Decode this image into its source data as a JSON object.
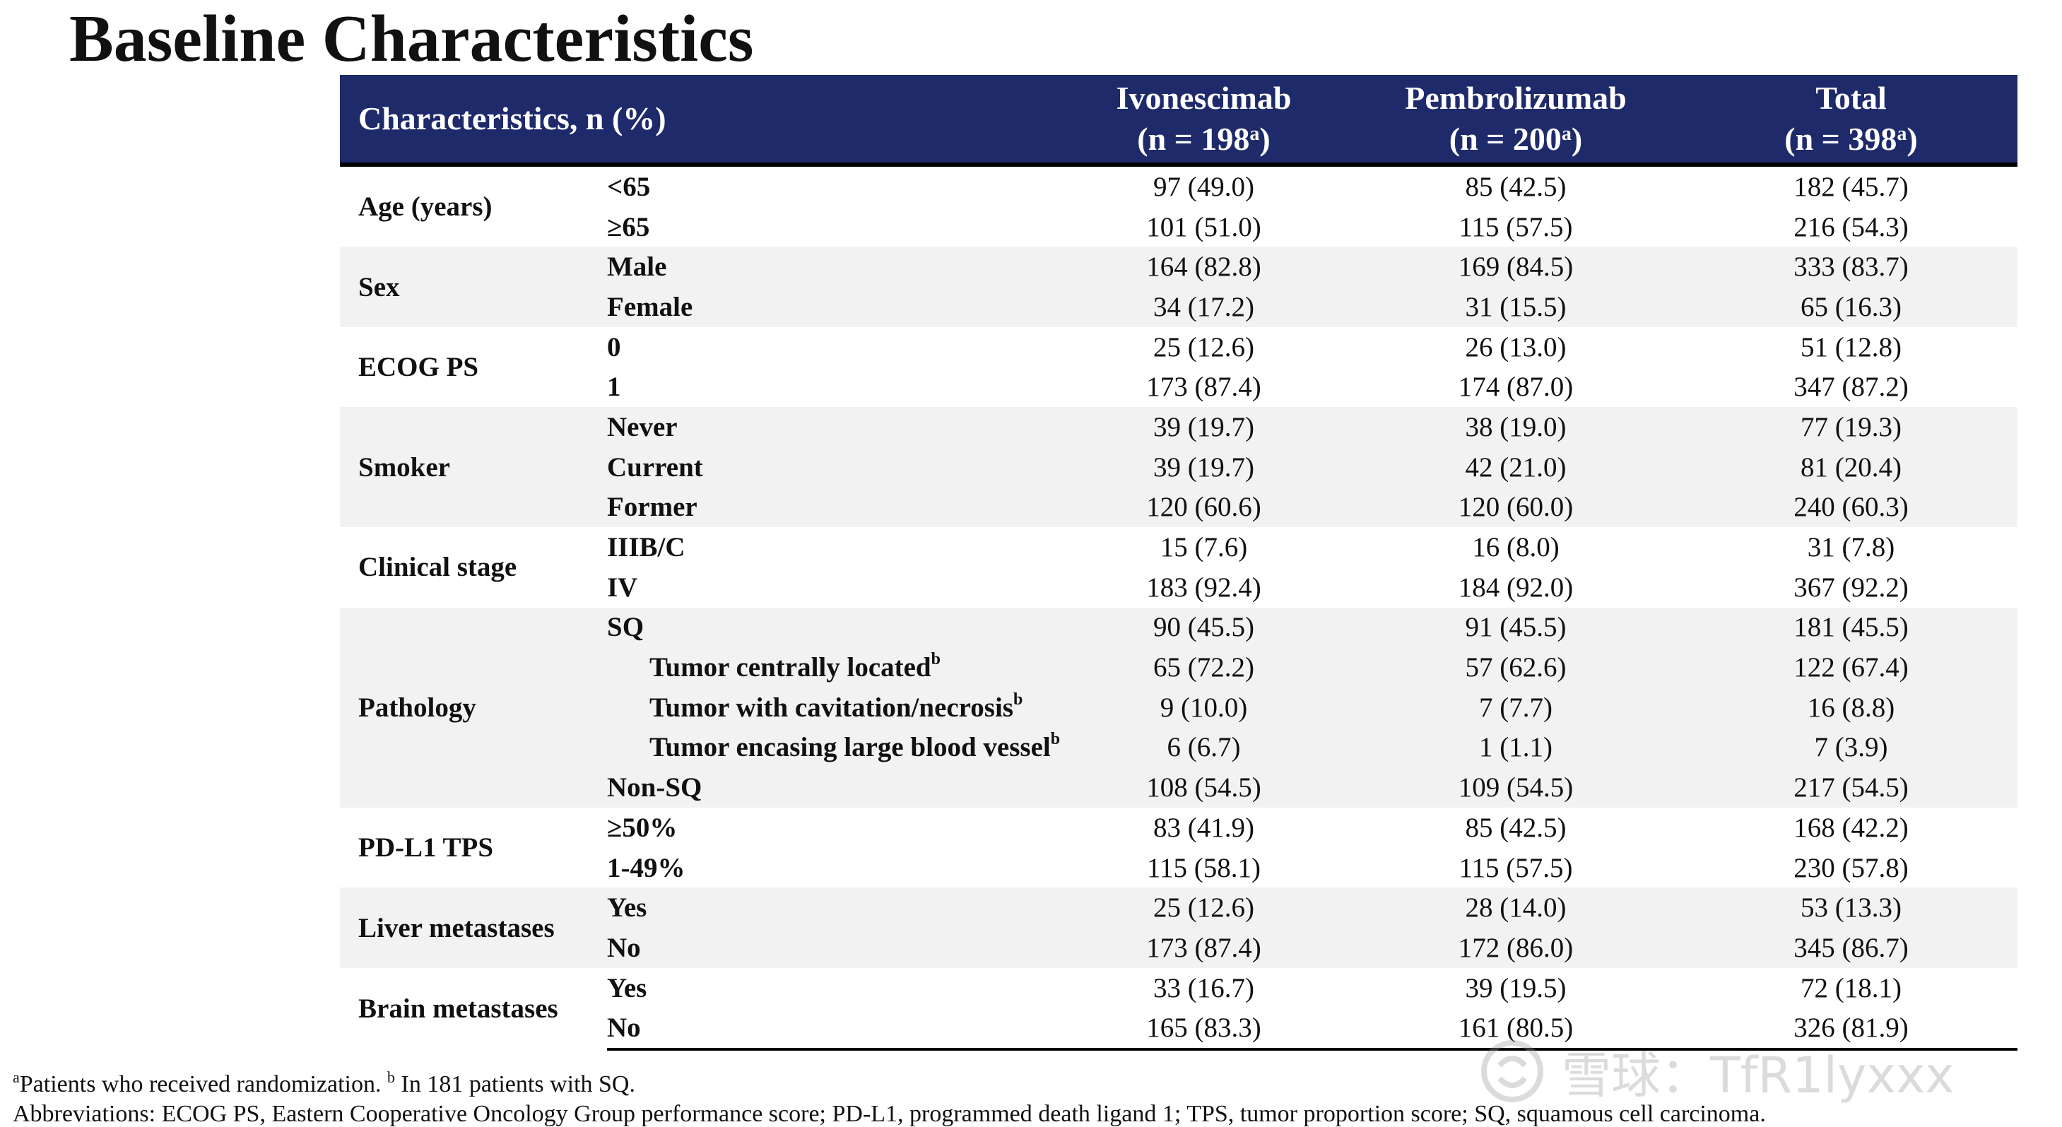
{
  "title": "Baseline Characteristics",
  "colors": {
    "header_bg": "#1f2a6b",
    "band_bg": "#f2f2f2"
  },
  "header": {
    "characteristics": "Characteristics, n (%)",
    "cols": [
      {
        "name": "Ivonescimab",
        "n_pre": "(n = 198",
        "sup": "a",
        "n_post": ")"
      },
      {
        "name": "Pembrolizumab",
        "n_pre": "(n = 200",
        "sup": "a",
        "n_post": ")"
      },
      {
        "name": "Total",
        "n_pre": "(n = 398",
        "sup": "a",
        "n_post": ")"
      }
    ]
  },
  "groups": [
    {
      "label": "Age (years)",
      "rows": [
        {
          "sub": "<65",
          "ivo": "97 (49.0)",
          "pem": "85 (42.5)",
          "tot": "182 (45.7)"
        },
        {
          "sub": "≥65",
          "ivo": "101 (51.0)",
          "pem": "115 (57.5)",
          "tot": "216 (54.3)"
        }
      ]
    },
    {
      "label": "Sex",
      "rows": [
        {
          "sub": "Male",
          "ivo": "164 (82.8)",
          "pem": "169 (84.5)",
          "tot": "333 (83.7)"
        },
        {
          "sub": "Female",
          "ivo": "34 (17.2)",
          "pem": "31 (15.5)",
          "tot": "65 (16.3)"
        }
      ]
    },
    {
      "label": "ECOG PS",
      "rows": [
        {
          "sub": "0",
          "ivo": "25 (12.6)",
          "pem": "26 (13.0)",
          "tot": "51 (12.8)"
        },
        {
          "sub": "1",
          "ivo": "173 (87.4)",
          "pem": "174 (87.0)",
          "tot": "347 (87.2)"
        }
      ]
    },
    {
      "label": "Smoker",
      "rows": [
        {
          "sub": "Never",
          "ivo": "39 (19.7)",
          "pem": "38 (19.0)",
          "tot": "77 (19.3)"
        },
        {
          "sub": "Current",
          "ivo": "39 (19.7)",
          "pem": "42 (21.0)",
          "tot": "81 (20.4)"
        },
        {
          "sub": "Former",
          "ivo": "120 (60.6)",
          "pem": "120 (60.0)",
          "tot": "240 (60.3)"
        }
      ]
    },
    {
      "label": "Clinical stage",
      "rows": [
        {
          "sub": "IIIB/C",
          "ivo": "15 (7.6)",
          "pem": "16 (8.0)",
          "tot": "31 (7.8)"
        },
        {
          "sub": "IV",
          "ivo": "183 (92.4)",
          "pem": "184 (92.0)",
          "tot": "367 (92.2)"
        }
      ]
    },
    {
      "label": "Pathology",
      "rows": [
        {
          "sub": "SQ",
          "ivo": "90 (45.5)",
          "pem": "91 (45.5)",
          "tot": "181 (45.5)"
        },
        {
          "sub": "Tumor centrally located",
          "sup": "b",
          "indent": true,
          "ivo": "65 (72.2)",
          "pem": "57 (62.6)",
          "tot": "122 (67.4)"
        },
        {
          "sub": "Tumor with cavitation/necrosis",
          "sup": "b",
          "indent": true,
          "ivo": "9 (10.0)",
          "pem": "7 (7.7)",
          "tot": "16 (8.8)"
        },
        {
          "sub": "Tumor encasing large blood vessel",
          "sup": "b",
          "indent": true,
          "ivo": "6 (6.7)",
          "pem": "1 (1.1)",
          "tot": "7 (3.9)"
        },
        {
          "sub": "Non-SQ",
          "ivo": "108 (54.5)",
          "pem": "109 (54.5)",
          "tot": "217 (54.5)"
        }
      ]
    },
    {
      "label": "PD-L1 TPS",
      "rows": [
        {
          "sub": "≥50%",
          "ivo": "83 (41.9)",
          "pem": "85 (42.5)",
          "tot": "168 (42.2)"
        },
        {
          "sub": "1-49%",
          "ivo": "115 (58.1)",
          "pem": "115 (57.5)",
          "tot": "230 (57.8)"
        }
      ]
    },
    {
      "label": "Liver metastases",
      "rows": [
        {
          "sub": "Yes",
          "ivo": "25 (12.6)",
          "pem": "28 (14.0)",
          "tot": "53 (13.3)"
        },
        {
          "sub": "No",
          "ivo": "173 (87.4)",
          "pem": "172 (86.0)",
          "tot": "345 (86.7)"
        }
      ]
    },
    {
      "label": "Brain metastases",
      "rows": [
        {
          "sub": "Yes",
          "ivo": "33 (16.7)",
          "pem": "39 (19.5)",
          "tot": "72 (18.1)"
        },
        {
          "sub": "No",
          "ivo": "165 (83.3)",
          "pem": "161 (80.5)",
          "tot": "326 (81.9)"
        }
      ]
    }
  ],
  "footnotes": {
    "a_marker": "a",
    "a_text": "Patients who received  randomization.",
    "b_marker": "b",
    "b_text": "In 181 patients with SQ.",
    "abbreviations": "Abbreviations: ECOG PS, Eastern Cooperative Oncology Group performance score; PD-L1, programmed death ligand 1; TPS, tumor proportion score; SQ, squamous cell carcinoma."
  },
  "watermark": {
    "text": "雪球：TfR1lyxxx",
    "icon": "snowball-logo-icon"
  }
}
